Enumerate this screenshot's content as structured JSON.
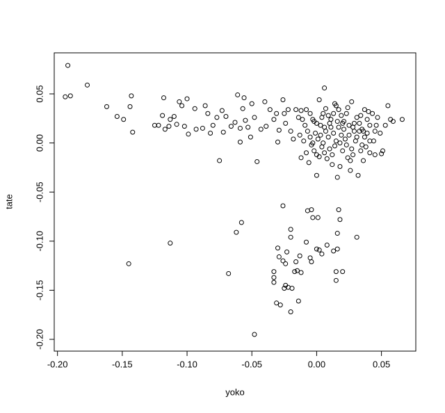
{
  "chart_data": {
    "type": "scatter",
    "x_label": "yoko",
    "y_label": "tate",
    "color": "#000000",
    "xlim": [
      -0.2025,
      0.0765
    ],
    "ylim": [
      -0.212,
      0.0918
    ],
    "xticks": [
      {
        "value": -0.2,
        "label": "-0.20"
      },
      {
        "value": -0.15,
        "label": "-0.15"
      },
      {
        "value": -0.1,
        "label": "-0.10"
      },
      {
        "value": -0.05,
        "label": "-0.05"
      },
      {
        "value": 0,
        "label": "0.00"
      },
      {
        "value": 0.05,
        "label": "0.05"
      }
    ],
    "yticks": [
      {
        "value": -0.2,
        "label": "-0.20"
      },
      {
        "value": -0.15,
        "label": "-0.15"
      },
      {
        "value": -0.1,
        "label": "-0.10"
      },
      {
        "value": -0.05,
        "label": "-0.05"
      },
      {
        "value": 0,
        "label": "0.00"
      },
      {
        "value": 0.05,
        "label": "0.05"
      }
    ],
    "x": [
      -0.192,
      -0.194,
      -0.19,
      -0.177,
      -0.162,
      -0.154,
      -0.149,
      -0.143,
      -0.144,
      -0.142,
      -0.145,
      -0.113,
      -0.125,
      -0.122,
      -0.119,
      -0.118,
      -0.117,
      -0.114,
      -0.113,
      -0.11,
      -0.108,
      -0.106,
      -0.104,
      -0.102,
      -0.1,
      -0.099,
      -0.094,
      -0.093,
      -0.088,
      -0.086,
      -0.084,
      -0.082,
      -0.08,
      -0.077,
      -0.075,
      -0.073,
      -0.072,
      -0.07,
      -0.068,
      -0.066,
      -0.063,
      -0.062,
      -0.061,
      -0.059,
      -0.059,
      -0.058,
      -0.057,
      -0.056,
      -0.055,
      -0.053,
      -0.051,
      -0.05,
      -0.048,
      -0.046,
      -0.048,
      -0.043,
      -0.04,
      -0.039,
      -0.036,
      -0.033,
      -0.031,
      -0.03,
      -0.029,
      -0.026,
      -0.025,
      -0.024,
      -0.022,
      -0.02,
      -0.018,
      -0.016,
      -0.014,
      -0.012,
      -0.026,
      -0.033,
      -0.033,
      -0.033,
      -0.031,
      -0.028,
      -0.03,
      -0.029,
      -0.026,
      -0.024,
      -0.023,
      -0.024,
      -0.025,
      -0.022,
      -0.02,
      -0.02,
      -0.02,
      -0.019,
      -0.017,
      -0.016,
      -0.015,
      -0.014,
      -0.013,
      -0.012,
      -0.008,
      -0.007,
      -0.005,
      -0.004,
      -0.004,
      -0.003,
      0.0,
      0.001,
      0.002,
      0.004,
      0.008,
      0.013,
      0.015,
      0.015,
      0.016,
      0.016,
      0.017,
      0.018,
      0.02,
      0.031,
      0.006,
      0.002,
      -0.008,
      -0.005,
      -0.003,
      0.0,
      0.003,
      0.005,
      0.007,
      0.009,
      0.011,
      0.013,
      0.015,
      0.017,
      0.019,
      0.021,
      0.023,
      0.025,
      0.027,
      0.029,
      0.031,
      0.033,
      0.035,
      0.037,
      0.039,
      0.041,
      0.043,
      0.045,
      0.047,
      0.049,
      0.051,
      0.053,
      0.055,
      0.057,
      0.059,
      0.066,
      0.05,
      0.045,
      0.041,
      0.038,
      0.036,
      0.034,
      0.032,
      0.03,
      0.028,
      0.026,
      0.024,
      0.022,
      0.02,
      0.018,
      0.016,
      0.014,
      0.012,
      0.01,
      0.008,
      0.006,
      0.004,
      0.002,
      0.0,
      -0.002,
      -0.004,
      -0.006,
      -0.008,
      -0.01,
      -0.012,
      -0.009,
      -0.007,
      -0.005,
      -0.003,
      -0.001,
      0.001,
      0.003,
      0.005,
      0.007,
      0.009,
      0.011,
      0.013,
      0.015,
      0.017,
      0.019,
      0.021,
      0.023,
      0.025,
      0.027,
      0.029,
      0.031,
      0.033,
      0.035,
      0.037,
      0.039,
      0.041,
      -0.002,
      0.004,
      0.01,
      0.016,
      0.02,
      0.028,
      0.034,
      0.04,
      0.046,
      0.024,
      0.014,
      -0.011,
      -0.013,
      0.0,
      0.012,
      0.026,
      0.036,
      0.044,
      0.006,
      0.018
    ],
    "values": [
      0.079,
      0.047,
      0.048,
      0.059,
      0.037,
      0.027,
      0.024,
      0.048,
      0.037,
      0.011,
      -0.123,
      -0.102,
      0.018,
      0.018,
      0.028,
      0.046,
      0.014,
      0.017,
      0.024,
      0.027,
      0.019,
      0.042,
      0.038,
      0.017,
      0.045,
      0.009,
      0.035,
      0.014,
      0.015,
      0.038,
      0.03,
      0.01,
      0.018,
      0.026,
      -0.018,
      0.033,
      0.011,
      0.027,
      -0.133,
      0.017,
      0.021,
      -0.091,
      0.049,
      0.015,
      0.001,
      -0.081,
      0.035,
      0.046,
      0.023,
      0.016,
      0.006,
      0.04,
      0.026,
      -0.019,
      -0.195,
      0.014,
      0.042,
      0.017,
      0.034,
      0.024,
      0.03,
      0.001,
      0.013,
      0.044,
      0.03,
      0.02,
      0.034,
      0.012,
      0.004,
      0.034,
      0.026,
      0.033,
      -0.064,
      -0.131,
      -0.137,
      -0.142,
      -0.163,
      -0.165,
      -0.107,
      -0.116,
      -0.12,
      -0.123,
      -0.111,
      -0.145,
      -0.148,
      -0.147,
      -0.172,
      -0.088,
      -0.096,
      -0.148,
      -0.131,
      -0.121,
      -0.13,
      -0.161,
      -0.115,
      -0.132,
      -0.101,
      -0.069,
      -0.117,
      -0.068,
      -0.121,
      -0.076,
      -0.108,
      -0.076,
      -0.109,
      -0.113,
      -0.104,
      -0.11,
      -0.131,
      -0.14,
      -0.092,
      -0.108,
      -0.068,
      -0.078,
      -0.131,
      -0.096,
      0.056,
      0.044,
      0.034,
      0.03,
      0.024,
      0.02,
      0.018,
      0.03,
      0.035,
      0.028,
      0.024,
      0.03,
      0.038,
      0.034,
      0.028,
      0.022,
      0.03,
      0.018,
      0.042,
      0.012,
      0.026,
      0.02,
      0.014,
      0.034,
      0.024,
      0.018,
      0.03,
      0.012,
      0.026,
      0.01,
      -0.008,
      0.018,
      0.038,
      0.024,
      0.022,
      0.024,
      -0.011,
      -0.012,
      -0.01,
      -0.004,
      -0.018,
      -0.008,
      -0.033,
      0.002,
      -0.012,
      -0.028,
      -0.015,
      0.004,
      -0.008,
      -0.024,
      -0.035,
      -0.003,
      -0.012,
      -0.006,
      -0.016,
      -0.01,
      -0.004,
      -0.014,
      -0.033,
      -0.008,
      -0.002,
      -0.02,
      -0.01,
      0.002,
      -0.015,
      0.018,
      0.012,
      0.006,
      0.0,
      0.01,
      0.004,
      0.008,
      0.0,
      0.012,
      0.006,
      0.016,
      0.01,
      0.002,
      0.016,
      0.008,
      0.014,
      -0.002,
      0.008,
      -0.006,
      0.02,
      0.006,
      0.012,
      -0.002,
      0.006,
      0.01,
      0.002,
      0.022,
      0.026,
      0.02,
      0.022,
      0.02,
      0.016,
      0.028,
      0.032,
      0.018,
      0.036,
      0.04,
      0.024,
      0.008,
      -0.012,
      -0.022,
      -0.018,
      0.012,
      0.002,
      0.016,
      0.0
    ]
  }
}
